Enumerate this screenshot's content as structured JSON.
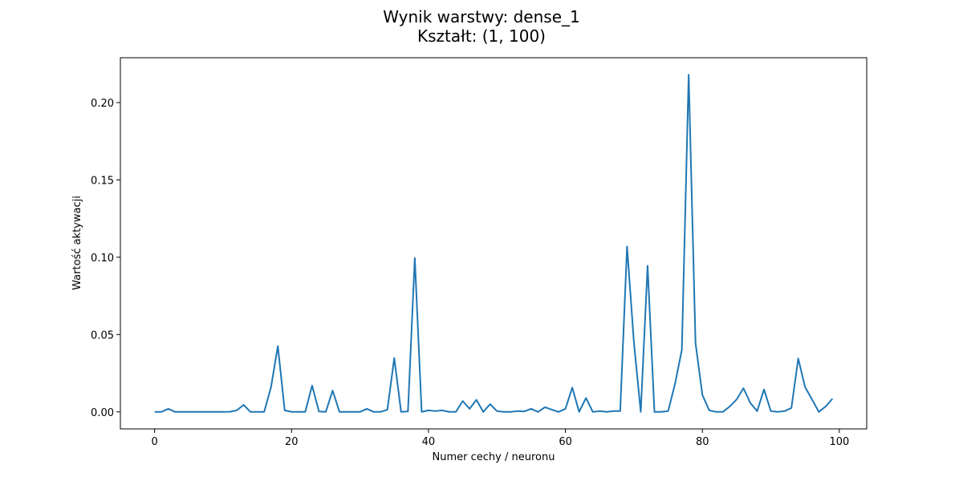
{
  "chart_data": {
    "type": "line",
    "title": "Wynik warstwy: dense_1",
    "subtitle": "Kształt: (1, 100)",
    "xlabel": "Numer cechy / neuronu",
    "ylabel": "Wartość aktywacji",
    "xlim": [
      -5,
      104
    ],
    "ylim": [
      -0.011,
      0.229
    ],
    "xticks": [
      0,
      20,
      40,
      60,
      80,
      100
    ],
    "yticks": [
      0.0,
      0.05,
      0.1,
      0.15,
      0.2
    ],
    "xtick_labels": [
      "0",
      "20",
      "40",
      "60",
      "80",
      "100"
    ],
    "ytick_labels": [
      "0.00",
      "0.05",
      "0.10",
      "0.15",
      "0.20"
    ],
    "grid": false,
    "legend": "none",
    "line_color": "#1f77b4",
    "series": [
      {
        "x": [
          0,
          1,
          2,
          3,
          4,
          5,
          6,
          7,
          8,
          9,
          10,
          11,
          12,
          13,
          14,
          15,
          16,
          17,
          18,
          19,
          20,
          21,
          22,
          23,
          24,
          25,
          26,
          27,
          28,
          29,
          30,
          31,
          32,
          33,
          34,
          35,
          36,
          37,
          38,
          39,
          40,
          41,
          42,
          43,
          44,
          45,
          46,
          47,
          48,
          49,
          50,
          51,
          52,
          53,
          54,
          55,
          56,
          57,
          58,
          59,
          60,
          61,
          62,
          63,
          64,
          65,
          66,
          67,
          68,
          69,
          70,
          71,
          72,
          73,
          74,
          75,
          76,
          77,
          78,
          79,
          80,
          81,
          82,
          83,
          84,
          85,
          86,
          87,
          88,
          89,
          90,
          91,
          92,
          93,
          94,
          95,
          96,
          97,
          98,
          99
        ],
        "values": [
          0.0,
          0.0,
          0.002,
          0.0,
          0.0,
          0.0,
          0.0,
          0.0,
          0.0,
          0.0,
          0.0,
          0.0001,
          0.001,
          0.0045,
          0.0,
          0.0,
          0.0,
          0.016,
          0.0425,
          0.001,
          0.0,
          0.0,
          0.0,
          0.017,
          0.0003,
          0.0,
          0.0138,
          0.0,
          0.0,
          0.0,
          0.0,
          0.002,
          0.0,
          0.0,
          0.0015,
          0.0348,
          0.0,
          0.0003,
          0.0995,
          0.0,
          0.001,
          0.0005,
          0.001,
          0.0,
          0.0,
          0.007,
          0.002,
          0.0078,
          0.0,
          0.005,
          0.0005,
          0.0,
          0.0,
          0.0005,
          0.0003,
          0.002,
          0.0,
          0.003,
          0.0015,
          0.0,
          0.002,
          0.0157,
          0.0,
          0.009,
          0.0,
          0.0005,
          0.0,
          0.0005,
          0.0005,
          0.107,
          0.045,
          0.0,
          0.0945,
          0.0,
          0.0,
          0.0005,
          0.018,
          0.04,
          0.218,
          0.0445,
          0.011,
          0.001,
          0.0,
          0.0,
          0.0035,
          0.008,
          0.0153,
          0.0058,
          0.0005,
          0.0145,
          0.0005,
          0.0,
          0.0005,
          0.0025,
          0.0345,
          0.016,
          0.0082,
          0.0,
          0.0035,
          0.0085
        ]
      }
    ]
  }
}
